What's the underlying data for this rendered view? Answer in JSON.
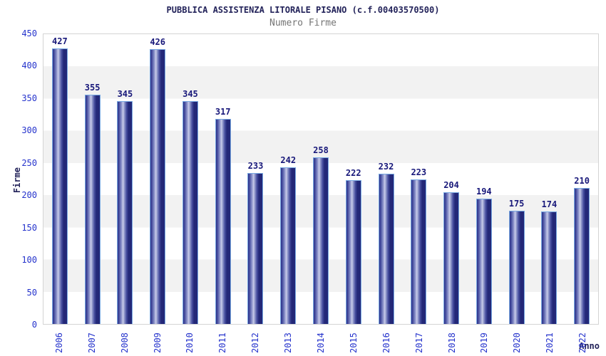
{
  "chart_data": {
    "type": "bar",
    "title": "PUBBLICA ASSISTENZA LITORALE PISANO (c.f.00403570500)",
    "subtitle": "Numero Firme",
    "xlabel": "Anno",
    "ylabel": "Firme",
    "categories": [
      "2006",
      "2007",
      "2008",
      "2009",
      "2010",
      "2011",
      "2012",
      "2013",
      "2014",
      "2015",
      "2016",
      "2017",
      "2018",
      "2019",
      "2020",
      "2021",
      "2022"
    ],
    "values": [
      427,
      355,
      345,
      426,
      345,
      317,
      233,
      242,
      258,
      222,
      232,
      223,
      204,
      194,
      175,
      174,
      210
    ],
    "ylim": [
      0,
      450
    ],
    "ytick_step": 50,
    "grid": "alternating-horizontal-bands",
    "legend_position": "none",
    "bar_labels_shown": true,
    "colors": {
      "bar_dark": "#232878",
      "bar_light": "#c9cdea",
      "bar_border": "#79a9e2",
      "axis_tick_label": "#2533cc",
      "value_label": "#18187a",
      "title": "#23235a",
      "subtitle": "#757575",
      "band_gray": "#f2f2f2",
      "band_white": "#ffffff",
      "plot_border": "#d4d4d4"
    }
  }
}
